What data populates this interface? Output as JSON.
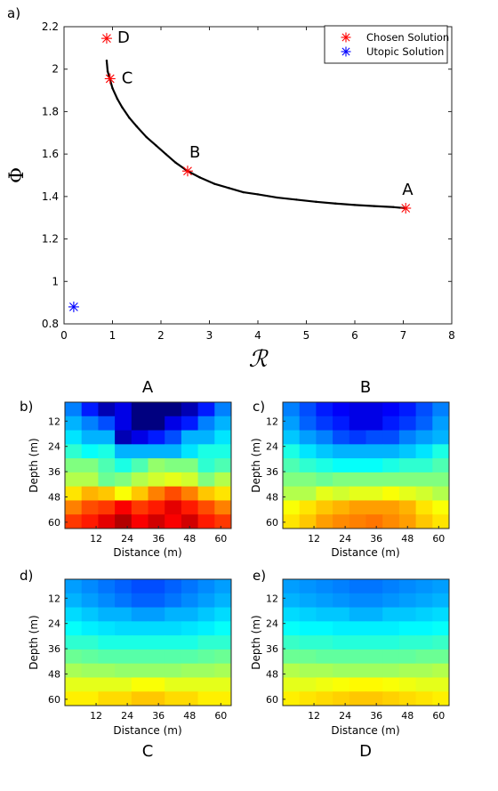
{
  "chart_data": [
    {
      "panel_label": "a)",
      "type": "scatter",
      "title": "",
      "xlabel": "ℛ",
      "ylabel": "Φ",
      "xlim": [
        0,
        8
      ],
      "ylim": [
        0.8,
        2.2
      ],
      "x_ticks": [
        "0",
        "1",
        "2",
        "3",
        "4",
        "5",
        "6",
        "7",
        "8"
      ],
      "y_ticks": [
        "0.8",
        "1",
        "1.2",
        "1.4",
        "1.6",
        "1.8",
        "2",
        "2.2"
      ],
      "grid": false,
      "legend_position": "top-right",
      "pareto_front": {
        "x": [
          0.88,
          0.9,
          0.95,
          1.0,
          1.1,
          1.2,
          1.35,
          1.5,
          1.7,
          1.9,
          2.1,
          2.3,
          2.55,
          2.8,
          3.1,
          3.4,
          3.7,
          4.0,
          4.4,
          4.8,
          5.2,
          5.6,
          6.0,
          6.4,
          6.8,
          7.05
        ],
        "y": [
          2.04,
          1.99,
          1.95,
          1.91,
          1.86,
          1.82,
          1.77,
          1.73,
          1.68,
          1.64,
          1.6,
          1.56,
          1.52,
          1.49,
          1.46,
          1.44,
          1.42,
          1.41,
          1.395,
          1.385,
          1.375,
          1.367,
          1.36,
          1.355,
          1.35,
          1.345
        ],
        "color": "#000000"
      },
      "series": [
        {
          "name": "Chosen Solution",
          "color": "#ff0000",
          "points": [
            {
              "label": "A",
              "x": 7.05,
              "y": 1.345
            },
            {
              "label": "B",
              "x": 2.55,
              "y": 1.52
            },
            {
              "label": "C",
              "x": 0.95,
              "y": 1.955
            },
            {
              "label": "D",
              "x": 0.88,
              "y": 2.145
            }
          ]
        },
        {
          "name": "Utopic Solution",
          "color": "#0000ff",
          "points": [
            {
              "label": "",
              "x": 0.2,
              "y": 0.88
            }
          ]
        }
      ]
    },
    {
      "panel_label": "b)",
      "title": "A",
      "type": "heatmap",
      "xlabel": "Distance (m)",
      "ylabel": "Depth (m)",
      "x_ticks": [
        "12",
        "24",
        "36",
        "48",
        "60"
      ],
      "y_ticks": [
        "12",
        "24",
        "36",
        "48",
        "60"
      ],
      "values": [
        [
          0.25,
          0.15,
          0.05,
          0.1,
          0.0,
          0.0,
          0.0,
          0.05,
          0.15,
          0.25
        ],
        [
          0.3,
          0.25,
          0.2,
          0.1,
          0.0,
          0.0,
          0.1,
          0.15,
          0.25,
          0.3
        ],
        [
          0.35,
          0.3,
          0.3,
          0.05,
          0.1,
          0.15,
          0.2,
          0.3,
          0.3,
          0.35
        ],
        [
          0.42,
          0.38,
          0.4,
          0.3,
          0.3,
          0.3,
          0.3,
          0.35,
          0.4,
          0.4
        ],
        [
          0.5,
          0.5,
          0.45,
          0.4,
          0.45,
          0.52,
          0.5,
          0.5,
          0.42,
          0.45
        ],
        [
          0.55,
          0.55,
          0.48,
          0.5,
          0.55,
          0.58,
          0.6,
          0.58,
          0.5,
          0.55
        ],
        [
          0.65,
          0.7,
          0.68,
          0.62,
          0.68,
          0.75,
          0.8,
          0.75,
          0.68,
          0.65
        ],
        [
          0.75,
          0.8,
          0.82,
          0.88,
          0.82,
          0.85,
          0.9,
          0.85,
          0.8,
          0.75
        ],
        [
          0.82,
          0.85,
          0.9,
          0.95,
          0.88,
          0.92,
          0.88,
          0.92,
          0.85,
          0.82
        ]
      ]
    },
    {
      "panel_label": "c)",
      "title": "B",
      "type": "heatmap",
      "xlabel": "Distance (m)",
      "ylabel": "Depth (m)",
      "x_ticks": [
        "12",
        "24",
        "36",
        "48",
        "60"
      ],
      "y_ticks": [
        "12",
        "24",
        "36",
        "48",
        "60"
      ],
      "values": [
        [
          0.25,
          0.2,
          0.15,
          0.12,
          0.1,
          0.1,
          0.12,
          0.15,
          0.2,
          0.25
        ],
        [
          0.28,
          0.22,
          0.18,
          0.15,
          0.1,
          0.1,
          0.15,
          0.18,
          0.22,
          0.28
        ],
        [
          0.32,
          0.28,
          0.25,
          0.2,
          0.18,
          0.2,
          0.2,
          0.25,
          0.28,
          0.3
        ],
        [
          0.4,
          0.35,
          0.32,
          0.3,
          0.3,
          0.3,
          0.3,
          0.32,
          0.35,
          0.4
        ],
        [
          0.45,
          0.42,
          0.4,
          0.38,
          0.38,
          0.38,
          0.4,
          0.42,
          0.42,
          0.45
        ],
        [
          0.5,
          0.5,
          0.48,
          0.5,
          0.5,
          0.5,
          0.5,
          0.5,
          0.5,
          0.5
        ],
        [
          0.55,
          0.55,
          0.6,
          0.58,
          0.6,
          0.6,
          0.62,
          0.6,
          0.58,
          0.55
        ],
        [
          0.62,
          0.65,
          0.68,
          0.7,
          0.72,
          0.72,
          0.72,
          0.7,
          0.65,
          0.62
        ],
        [
          0.65,
          0.68,
          0.72,
          0.74,
          0.75,
          0.76,
          0.74,
          0.72,
          0.68,
          0.65
        ]
      ]
    },
    {
      "panel_label": "d)",
      "title": "C",
      "type": "heatmap",
      "xlabel": "Distance (m)",
      "ylabel": "Depth (m)",
      "x_ticks": [
        "12",
        "24",
        "36",
        "48",
        "60"
      ],
      "y_ticks": [
        "12",
        "24",
        "36",
        "48",
        "60"
      ],
      "values": [
        [
          0.28,
          0.26,
          0.24,
          0.22,
          0.2,
          0.2,
          0.22,
          0.24,
          0.26,
          0.28
        ],
        [
          0.3,
          0.28,
          0.26,
          0.24,
          0.22,
          0.22,
          0.24,
          0.26,
          0.28,
          0.3
        ],
        [
          0.34,
          0.32,
          0.3,
          0.3,
          0.28,
          0.28,
          0.3,
          0.3,
          0.32,
          0.34
        ],
        [
          0.38,
          0.36,
          0.35,
          0.34,
          0.34,
          0.34,
          0.34,
          0.35,
          0.36,
          0.38
        ],
        [
          0.42,
          0.42,
          0.4,
          0.4,
          0.4,
          0.4,
          0.4,
          0.4,
          0.42,
          0.42
        ],
        [
          0.48,
          0.47,
          0.46,
          0.46,
          0.46,
          0.46,
          0.46,
          0.46,
          0.47,
          0.48
        ],
        [
          0.54,
          0.53,
          0.53,
          0.52,
          0.52,
          0.52,
          0.52,
          0.53,
          0.53,
          0.54
        ],
        [
          0.6,
          0.6,
          0.6,
          0.6,
          0.62,
          0.62,
          0.6,
          0.6,
          0.6,
          0.6
        ],
        [
          0.64,
          0.64,
          0.66,
          0.66,
          0.68,
          0.68,
          0.66,
          0.66,
          0.64,
          0.64
        ]
      ]
    },
    {
      "panel_label": "e)",
      "title": "D",
      "type": "heatmap",
      "xlabel": "Distance (m)",
      "ylabel": "Depth (m)",
      "x_ticks": [
        "12",
        "24",
        "36",
        "48",
        "60"
      ],
      "y_ticks": [
        "12",
        "24",
        "36",
        "48",
        "60"
      ],
      "values": [
        [
          0.28,
          0.27,
          0.26,
          0.25,
          0.24,
          0.24,
          0.25,
          0.26,
          0.27,
          0.28
        ],
        [
          0.3,
          0.29,
          0.28,
          0.27,
          0.26,
          0.26,
          0.27,
          0.28,
          0.29,
          0.3
        ],
        [
          0.34,
          0.33,
          0.32,
          0.32,
          0.3,
          0.3,
          0.32,
          0.32,
          0.33,
          0.34
        ],
        [
          0.38,
          0.37,
          0.37,
          0.36,
          0.36,
          0.36,
          0.36,
          0.37,
          0.37,
          0.38
        ],
        [
          0.43,
          0.42,
          0.42,
          0.41,
          0.41,
          0.41,
          0.41,
          0.42,
          0.42,
          0.43
        ],
        [
          0.48,
          0.48,
          0.47,
          0.47,
          0.47,
          0.47,
          0.47,
          0.47,
          0.48,
          0.48
        ],
        [
          0.55,
          0.54,
          0.54,
          0.53,
          0.53,
          0.53,
          0.53,
          0.54,
          0.54,
          0.55
        ],
        [
          0.6,
          0.6,
          0.61,
          0.62,
          0.63,
          0.63,
          0.62,
          0.61,
          0.6,
          0.6
        ],
        [
          0.64,
          0.65,
          0.66,
          0.67,
          0.68,
          0.68,
          0.67,
          0.66,
          0.65,
          0.64
        ]
      ]
    }
  ]
}
